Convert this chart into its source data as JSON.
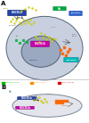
{
  "bg_color": "#ffffff",
  "panel_a_label": "A",
  "panel_b_label": "B",
  "cell_a_fc": "#c8d0e0",
  "cell_a_ec": "#556677",
  "nucleus_fc": "#9aa8c0",
  "nucleus_ec": "#445566",
  "flvcr1a_color": "#2244aa",
  "flvcr1b_color": "#cc00aa",
  "heme_color": "#dddd00",
  "hb_color": "#00aa44",
  "orange_color": "#ff6600",
  "teal_color": "#00aaaa",
  "legend_hb_color": "#00bb00",
  "legend_s_color": "#ff8800",
  "legend_m_color": "#dd0000"
}
